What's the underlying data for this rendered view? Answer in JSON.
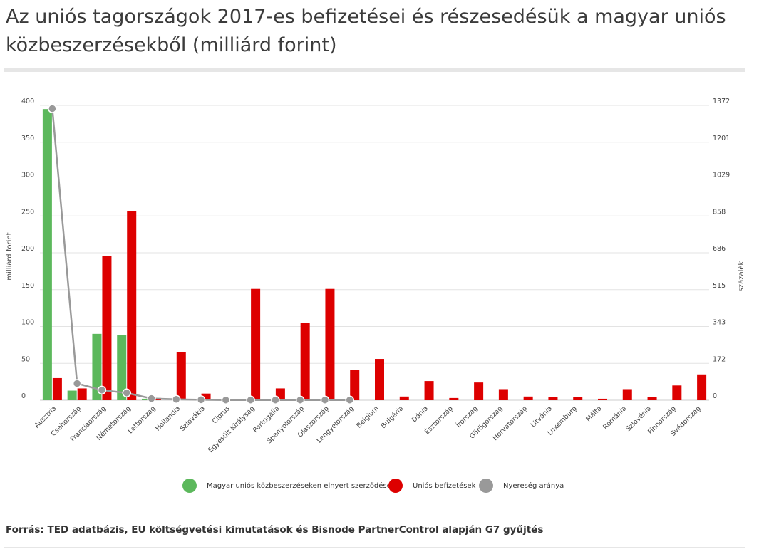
{
  "header": {
    "title": "Az uniós tagországok 2017-es befizetései és részesedésük a magyar uniós közbeszerzésekből (milliárd forint)"
  },
  "footer": {
    "source": "Forrás: TED adatbázis, EU költségvetési kimutatások és Bisnode PartnerControl alapján G7 gyűjtés"
  },
  "chart_data": {
    "type": "bar",
    "categories": [
      "Ausztria",
      "Csehország",
      "Franciaország",
      "Németország",
      "Lettország",
      "Hollandia",
      "Szlovákia",
      "Ciprus",
      "Egyesült Királyság",
      "Portugália",
      "Spanyolország",
      "Olaszország",
      "Lengyelország",
      "Belgium",
      "Bulgária",
      "Dánia",
      "Észtország",
      "Írország",
      "Görögország",
      "Horvátország",
      "Litvánia",
      "Luxemburg",
      "Málta",
      "Románia",
      "Szlovénia",
      "Finnország",
      "Svédország"
    ],
    "series": [
      {
        "name": "Magyar uniós közbeszerzéseken elnyert szerződések",
        "kind": "bar",
        "axis": "left",
        "color": "#5cb85c",
        "values": [
          395,
          13,
          90,
          88,
          2,
          null,
          null,
          null,
          null,
          null,
          null,
          null,
          null,
          null,
          null,
          null,
          null,
          null,
          null,
          null,
          null,
          null,
          null,
          null,
          null,
          null,
          null
        ]
      },
      {
        "name": "Uniós befizetések",
        "kind": "bar",
        "axis": "left",
        "color": "#dd0000",
        "values": [
          30,
          16,
          196,
          257,
          3,
          65,
          9,
          1,
          151,
          16,
          105,
          151,
          41,
          56,
          5,
          26,
          3,
          24,
          15,
          5,
          4,
          4,
          2,
          15,
          4,
          20,
          35
        ]
      },
      {
        "name": "Nyereség aránya",
        "kind": "line",
        "axis": "right",
        "color": "#999999",
        "values": [
          1357,
          78,
          47,
          34,
          8,
          4,
          2,
          1,
          1,
          1,
          1,
          1,
          1,
          null,
          null,
          null,
          null,
          null,
          null,
          null,
          null,
          null,
          null,
          null,
          null,
          null,
          null
        ]
      }
    ],
    "ylabel": "milliárd forint",
    "y2label": "százalék",
    "ylim": [
      0,
      400
    ],
    "yticks": [
      "0",
      "50",
      "100",
      "150",
      "200",
      "250",
      "300",
      "350",
      "400"
    ],
    "y2lim": [
      0,
      1372
    ],
    "y2ticks": [
      "0",
      "172",
      "343",
      "515",
      "686",
      "858",
      "1029",
      "1201",
      "1372"
    ],
    "grid": true,
    "legend_position": "bottom"
  }
}
